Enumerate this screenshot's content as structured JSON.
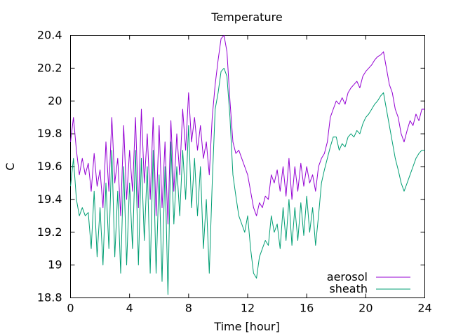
{
  "chart_data": {
    "type": "line",
    "title": "Temperature",
    "xlabel": "Time [hour]",
    "ylabel": "C",
    "xlim": [
      0,
      24
    ],
    "ylim": [
      18.8,
      20.4
    ],
    "xticks": [
      0,
      4,
      8,
      12,
      16,
      20,
      24
    ],
    "yticks": [
      18.8,
      19,
      19.2,
      19.4,
      19.6,
      19.8,
      20,
      20.2,
      20.4
    ],
    "ytick_labels": [
      "18.8",
      "19",
      "19.2",
      "19.4",
      "19.6",
      "19.8",
      "20",
      "20.2",
      "20.4"
    ],
    "grid": false,
    "legend_position": "bottom-right",
    "series": [
      {
        "name": "aerosol",
        "color": "#9400d3",
        "x": [
          0,
          0.2,
          0.4,
          0.6,
          0.8,
          1.0,
          1.2,
          1.4,
          1.6,
          1.8,
          2.0,
          2.2,
          2.4,
          2.6,
          2.8,
          3.0,
          3.2,
          3.4,
          3.6,
          3.8,
          4.0,
          4.2,
          4.4,
          4.6,
          4.8,
          5.0,
          5.2,
          5.4,
          5.6,
          5.8,
          6.0,
          6.2,
          6.4,
          6.6,
          6.8,
          7.0,
          7.2,
          7.4,
          7.6,
          7.8,
          8.0,
          8.2,
          8.4,
          8.6,
          8.8,
          9.0,
          9.2,
          9.4,
          9.6,
          9.8,
          10.0,
          10.2,
          10.4,
          10.6,
          10.8,
          11.0,
          11.2,
          11.4,
          11.6,
          11.8,
          12.0,
          12.2,
          12.4,
          12.6,
          12.8,
          13.0,
          13.2,
          13.4,
          13.6,
          13.8,
          14.0,
          14.2,
          14.4,
          14.6,
          14.8,
          15.0,
          15.2,
          15.4,
          15.6,
          15.8,
          16.0,
          16.2,
          16.4,
          16.6,
          16.8,
          17.0,
          17.2,
          17.4,
          17.6,
          17.8,
          18.0,
          18.2,
          18.4,
          18.6,
          18.8,
          19.0,
          19.2,
          19.4,
          19.6,
          19.8,
          20.0,
          20.2,
          20.4,
          20.6,
          20.8,
          21.0,
          21.2,
          21.4,
          21.6,
          21.8,
          22.0,
          22.2,
          22.4,
          22.6,
          22.8,
          23.0,
          23.2,
          23.4,
          23.6,
          23.8,
          24.0
        ],
        "values": [
          19.75,
          19.9,
          19.7,
          19.55,
          19.65,
          19.55,
          19.62,
          19.45,
          19.68,
          19.48,
          19.58,
          19.35,
          19.75,
          19.45,
          19.9,
          19.5,
          19.65,
          19.3,
          19.85,
          19.4,
          19.7,
          19.45,
          19.9,
          19.35,
          19.95,
          19.5,
          19.8,
          19.4,
          19.9,
          19.3,
          19.85,
          19.35,
          19.75,
          19.25,
          19.88,
          19.45,
          19.8,
          19.55,
          19.95,
          19.7,
          20.05,
          19.75,
          19.9,
          19.7,
          19.85,
          19.65,
          19.75,
          19.55,
          19.9,
          20.1,
          20.25,
          20.38,
          20.4,
          20.3,
          20.0,
          19.75,
          19.68,
          19.7,
          19.65,
          19.6,
          19.55,
          19.45,
          19.35,
          19.3,
          19.38,
          19.35,
          19.42,
          19.4,
          19.55,
          19.5,
          19.58,
          19.45,
          19.6,
          19.42,
          19.65,
          19.4,
          19.6,
          19.45,
          19.62,
          19.48,
          19.6,
          19.5,
          19.55,
          19.45,
          19.6,
          19.65,
          19.68,
          19.75,
          19.9,
          19.95,
          20.0,
          19.98,
          20.02,
          19.98,
          20.05,
          20.08,
          20.1,
          20.12,
          20.08,
          20.15,
          20.18,
          20.2,
          20.22,
          20.25,
          20.27,
          20.28,
          20.3,
          20.2,
          20.1,
          20.05,
          19.95,
          19.9,
          19.8,
          19.75,
          19.82,
          19.88,
          19.85,
          19.92,
          19.88,
          19.95,
          19.95
        ]
      },
      {
        "name": "sheath",
        "color": "#009e73",
        "x": [
          0,
          0.2,
          0.4,
          0.6,
          0.8,
          1.0,
          1.2,
          1.4,
          1.6,
          1.8,
          2.0,
          2.2,
          2.4,
          2.6,
          2.8,
          3.0,
          3.2,
          3.4,
          3.6,
          3.8,
          4.0,
          4.2,
          4.4,
          4.6,
          4.8,
          5.0,
          5.2,
          5.4,
          5.6,
          5.8,
          6.0,
          6.2,
          6.4,
          6.6,
          6.8,
          7.0,
          7.2,
          7.4,
          7.6,
          7.8,
          8.0,
          8.2,
          8.4,
          8.6,
          8.8,
          9.0,
          9.2,
          9.4,
          9.6,
          9.8,
          10.0,
          10.2,
          10.4,
          10.6,
          10.8,
          11.0,
          11.2,
          11.4,
          11.6,
          11.8,
          12.0,
          12.2,
          12.4,
          12.6,
          12.8,
          13.0,
          13.2,
          13.4,
          13.6,
          13.8,
          14.0,
          14.2,
          14.4,
          14.6,
          14.8,
          15.0,
          15.2,
          15.4,
          15.6,
          15.8,
          16.0,
          16.2,
          16.4,
          16.6,
          16.8,
          17.0,
          17.2,
          17.4,
          17.6,
          17.8,
          18.0,
          18.2,
          18.4,
          18.6,
          18.8,
          19.0,
          19.2,
          19.4,
          19.6,
          19.8,
          20.0,
          20.2,
          20.4,
          20.6,
          20.8,
          21.0,
          21.2,
          21.4,
          21.6,
          21.8,
          22.0,
          22.2,
          22.4,
          22.6,
          22.8,
          23.0,
          23.2,
          23.4,
          23.6,
          23.8,
          24.0
        ],
        "values": [
          19.48,
          19.65,
          19.4,
          19.3,
          19.35,
          19.3,
          19.32,
          19.1,
          19.45,
          19.05,
          19.35,
          19.0,
          19.5,
          19.1,
          19.7,
          19.05,
          19.45,
          18.95,
          19.6,
          19.0,
          19.5,
          19.1,
          19.7,
          19.0,
          19.65,
          19.15,
          19.6,
          18.95,
          19.7,
          18.95,
          19.55,
          18.9,
          19.6,
          18.82,
          19.75,
          19.25,
          19.6,
          19.3,
          19.7,
          19.4,
          19.85,
          19.35,
          19.65,
          19.3,
          19.6,
          19.1,
          19.4,
          18.95,
          19.5,
          19.95,
          20.05,
          20.18,
          20.2,
          20.15,
          19.9,
          19.55,
          19.42,
          19.3,
          19.25,
          19.2,
          19.3,
          19.1,
          18.95,
          18.92,
          19.05,
          19.1,
          19.15,
          19.12,
          19.3,
          19.2,
          19.25,
          19.1,
          19.35,
          19.15,
          19.4,
          19.12,
          19.35,
          19.15,
          19.38,
          19.18,
          19.42,
          19.2,
          19.35,
          19.12,
          19.3,
          19.5,
          19.58,
          19.65,
          19.72,
          19.78,
          19.78,
          19.7,
          19.74,
          19.72,
          19.78,
          19.8,
          19.78,
          19.82,
          19.8,
          19.86,
          19.9,
          19.92,
          19.95,
          19.98,
          20.0,
          20.03,
          20.05,
          19.95,
          19.85,
          19.75,
          19.65,
          19.58,
          19.5,
          19.45,
          19.5,
          19.55,
          19.6,
          19.65,
          19.68,
          19.7,
          19.7
        ]
      }
    ]
  }
}
